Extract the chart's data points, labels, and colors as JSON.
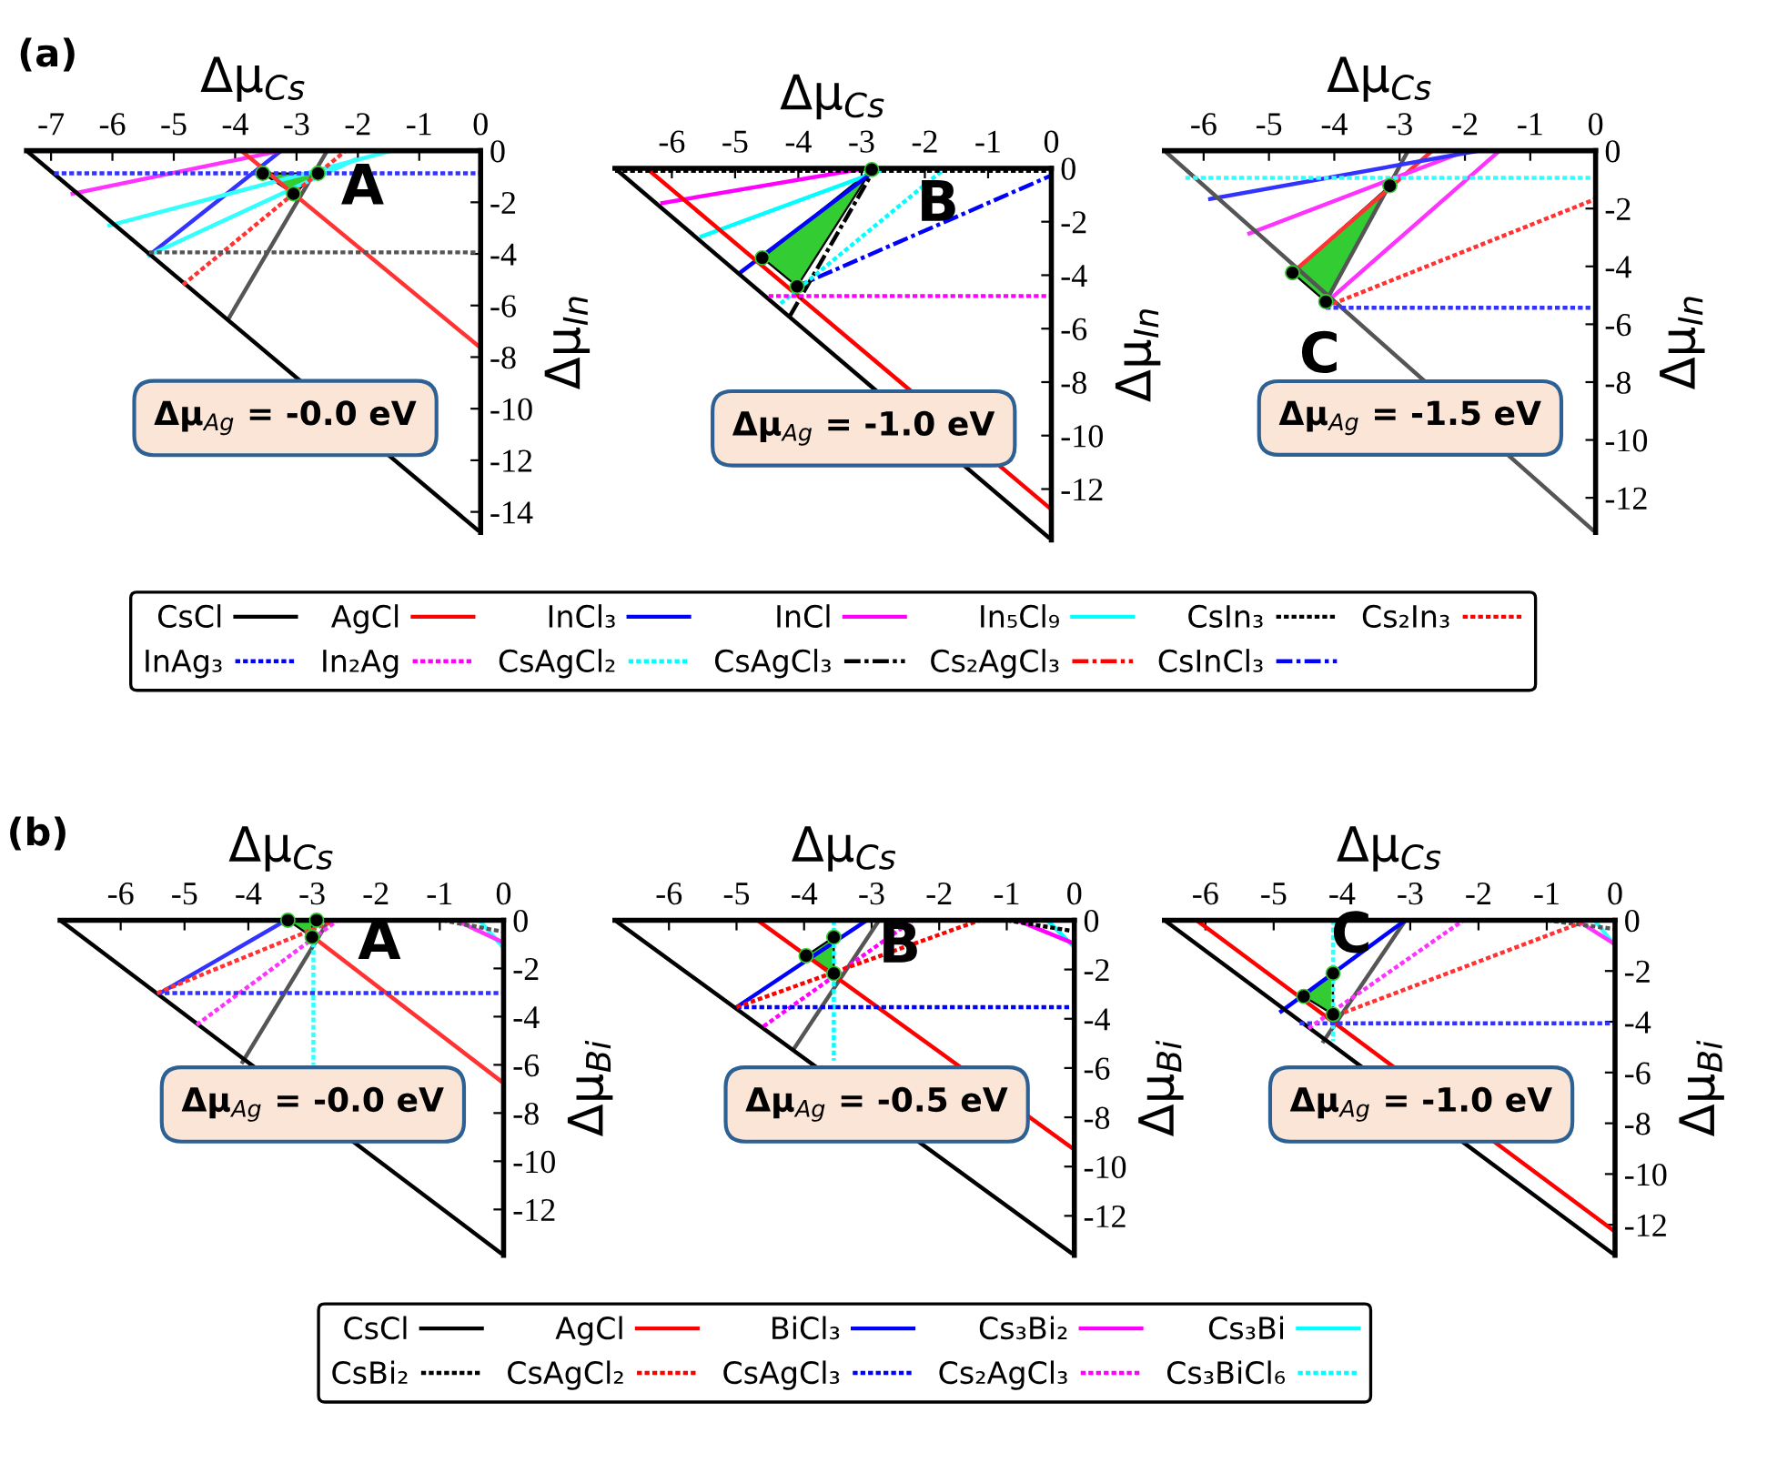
{
  "chart_data": [
    {
      "type": "line",
      "title": "(a)",
      "xlabel": "Δμ$_{Cs}$",
      "ylabel": "Δμ$_{In}$",
      "xlim": [
        -7.4,
        0
      ],
      "ylim": [
        -14.8,
        0
      ],
      "xticks": [
        -7,
        -6,
        -5,
        -4,
        -3,
        -2,
        -1,
        0
      ],
      "yticks": [
        0,
        -2,
        -4,
        -6,
        -8,
        -10,
        -12,
        -14
      ],
      "legend": false,
      "grid": false,
      "annotations": [
        "A",
        "Δμ$_{Ag}$ = -0.0 eV"
      ],
      "series": [
        {
          "color": "#000000",
          "line_style": "solid",
          "x": [
            -7.4,
            0
          ],
          "values": [
            0,
            -14.8
          ]
        },
        {
          "color": "#ff3333",
          "line_style": "solid",
          "x": [
            -3.9,
            0
          ],
          "values": [
            0,
            -7.64
          ]
        },
        {
          "color": "#3333ff",
          "line_style": "dotted",
          "x": [
            -6.95,
            0
          ],
          "values": [
            -0.88,
            -0.88
          ]
        },
        {
          "color": "#ff33ff",
          "line_style": "solid",
          "x": [
            -6.65,
            -3.25
          ],
          "values": [
            -1.67,
            0
          ]
        },
        {
          "color": "#33ffff",
          "line_style": "solid",
          "x": [
            -6.05,
            -1.45
          ],
          "values": [
            -2.9,
            0
          ]
        },
        {
          "color": "#33ffff",
          "line_style": "solid",
          "x": [
            -5.4,
            -2.05
          ],
          "values": [
            -4.05,
            -0.35
          ]
        },
        {
          "color": "#3333ff",
          "line_style": "solid",
          "x": [
            -5.4,
            -3.25
          ],
          "values": [
            -4.05,
            0
          ]
        },
        {
          "color": "#555555",
          "line_style": "dotted",
          "x": [
            -5.4,
            0
          ],
          "values": [
            -3.94,
            -3.94
          ]
        },
        {
          "color": "#ff3333",
          "line_style": "dotted",
          "x": [
            -4.85,
            -2.2
          ],
          "values": [
            -5.2,
            0
          ]
        },
        {
          "color": "#555555",
          "line_style": "solid",
          "x": [
            -4.1,
            -2.5
          ],
          "values": [
            -6.48,
            0
          ]
        },
        {
          "type": "area",
          "color": "#33cc33",
          "marker": "circle",
          "x": [
            -3.55,
            -3.05,
            -2.65
          ],
          "values": [
            -0.88,
            -1.67,
            -0.88
          ]
        }
      ]
    },
    {
      "type": "line",
      "xlabel": "Δμ$_{Cs}$",
      "ylabel": "Δμ$_{In}$",
      "xlim": [
        -6.9,
        0
      ],
      "ylim": [
        -13.9,
        0
      ],
      "xticks": [
        -6,
        -5,
        -4,
        -3,
        -2,
        -1,
        0
      ],
      "yticks": [
        0,
        -2,
        -4,
        -6,
        -8,
        -10,
        -12
      ],
      "legend": "bottom",
      "grid": false,
      "annotations": [
        "B",
        "Δμ$_{Ag}$ = -1.0 eV"
      ],
      "series": [
        {
          "name": "CsCl",
          "color": "#000000",
          "line_style": "solid",
          "x": [
            -6.9,
            0
          ],
          "values": [
            0,
            -13.9
          ]
        },
        {
          "name": "AgCl",
          "color": "#ff0000",
          "line_style": "solid",
          "x": [
            -6.4,
            0
          ],
          "values": [
            0,
            -12.76
          ]
        },
        {
          "name": "InCl₃",
          "color": "#0000ff",
          "line_style": "solid",
          "x": [
            -4.9,
            -2.74
          ],
          "values": [
            -3.87,
            0
          ]
        },
        {
          "name": "InCl",
          "color": "#ff00ff",
          "line_style": "solid",
          "x": [
            -6.15,
            -2.93
          ],
          "values": [
            -1.3,
            0
          ]
        },
        {
          "name": "In₅Cl₉",
          "color": "#00ffff",
          "line_style": "solid",
          "x": [
            -5.53,
            -2.6
          ],
          "values": [
            -2.55,
            0
          ]
        },
        {
          "name": "CsIn₃",
          "color": "#000000",
          "line_style": "dotted",
          "x": [
            -6.9,
            0
          ],
          "values": [
            -0.1,
            -0.1
          ]
        },
        {
          "name": "Cs₂In₃",
          "color": "#ff0000",
          "line_style": "dotted"
        },
        {
          "name": "InAg₃",
          "color": "#0000ff",
          "line_style": "dotted"
        },
        {
          "name": "In₂Ag",
          "color": "#ff00ff",
          "line_style": "dotted",
          "x": [
            -4.47,
            0
          ],
          "values": [
            -4.78,
            -4.78
          ]
        },
        {
          "name": "CsAgCl₂",
          "color": "#00ffff",
          "line_style": "dotted",
          "x": [
            -4.28,
            -1.68
          ],
          "values": [
            -5.06,
            0
          ]
        },
        {
          "name": "CsAgCl₃",
          "color": "#000000",
          "line_style": "dashdot",
          "x": [
            -4.13,
            -2.79
          ],
          "values": [
            -5.51,
            0
          ]
        },
        {
          "name": "Cs₂AgCl₃",
          "color": "#ff0000",
          "line_style": "dashdot"
        },
        {
          "name": "CsInCl₃",
          "color": "#0000ff",
          "line_style": "dashdot",
          "x": [
            -4.09,
            0
          ],
          "values": [
            -4.49,
            -0.27
          ]
        },
        {
          "type": "area",
          "color": "#33cc33",
          "marker": "circle",
          "x": [
            -4.57,
            -4.02,
            -2.84
          ],
          "values": [
            -3.35,
            -4.42,
            -0.05
          ]
        }
      ]
    },
    {
      "type": "line",
      "xlabel": "Δμ$_{Cs}$",
      "ylabel": "Δμ$_{In}$",
      "xlim": [
        -6.6,
        0
      ],
      "ylim": [
        -13.2,
        0
      ],
      "xticks": [
        -6,
        -5,
        -4,
        -3,
        -2,
        -1,
        0
      ],
      "yticks": [
        0,
        -2,
        -4,
        -6,
        -8,
        -10,
        -12
      ],
      "legend": false,
      "grid": false,
      "annotations": [
        "C",
        "Δμ$_{Ag}$ = -1.5 eV"
      ],
      "series": [
        {
          "color": "#555555",
          "line_style": "solid",
          "x": [
            -6.6,
            0
          ],
          "values": [
            0,
            -13.2
          ]
        },
        {
          "color": "#33ffff",
          "line_style": "dotted",
          "x": [
            -6.28,
            0
          ],
          "values": [
            -0.94,
            -0.94
          ]
        },
        {
          "color": "#3333ff",
          "line_style": "solid",
          "x": [
            -5.9,
            -1.79
          ],
          "values": [
            -1.67,
            0
          ]
        },
        {
          "color": "#ff33ff",
          "line_style": "solid",
          "x": [
            -5.3,
            -1.98
          ],
          "values": [
            -2.86,
            0
          ]
        },
        {
          "color": "#ff3333",
          "line_style": "solid",
          "x": [
            -4.64,
            -2.5
          ],
          "values": [
            -4.22,
            0
          ]
        },
        {
          "color": "#555555",
          "line_style": "solid",
          "x": [
            -4.13,
            -2.87
          ],
          "values": [
            -5.22,
            0
          ]
        },
        {
          "color": "#ff33ff",
          "line_style": "solid",
          "x": [
            -4.13,
            -1.47
          ],
          "values": [
            -5.26,
            0
          ]
        },
        {
          "color": "#ff3333",
          "line_style": "dotted",
          "x": [
            -4.13,
            0
          ],
          "values": [
            -5.39,
            -1.67
          ]
        },
        {
          "color": "#3333ff",
          "line_style": "dotted",
          "x": [
            -4.13,
            0
          ],
          "values": [
            -5.43,
            -5.43
          ]
        },
        {
          "type": "area",
          "color": "#33cc33",
          "marker": "circle",
          "x": [
            -4.64,
            -4.13,
            -3.15
          ],
          "values": [
            -4.22,
            -5.22,
            -1.21
          ]
        }
      ]
    },
    {
      "type": "line",
      "title": "(b)",
      "xlabel": "Δμ$_{Cs}$",
      "ylabel": "Δμ$_{Bi}$",
      "xlim": [
        -6.95,
        0
      ],
      "ylim": [
        -13.9,
        0
      ],
      "xticks": [
        -6,
        -5,
        -4,
        -3,
        -2,
        -1,
        0
      ],
      "yticks": [
        0,
        -2,
        -4,
        -6,
        -8,
        -10,
        -12
      ],
      "legend": false,
      "grid": false,
      "annotations": [
        "A",
        "Δμ$_{Ag}$ = -0.0 eV"
      ],
      "series": [
        {
          "color": "#000000",
          "line_style": "solid",
          "x": [
            -6.95,
            0
          ],
          "values": [
            0,
            -13.9
          ]
        },
        {
          "color": "#3333ff",
          "line_style": "solid",
          "x": [
            -5.38,
            -3.41
          ],
          "values": [
            -3.02,
            0
          ]
        },
        {
          "color": "#ff3333",
          "line_style": "dotted",
          "x": [
            -5.43,
            -2.64
          ],
          "values": [
            -3.02,
            0
          ]
        },
        {
          "color": "#3333ff",
          "line_style": "dotted",
          "x": [
            -5.43,
            0
          ],
          "values": [
            -3.02,
            -3.02
          ]
        },
        {
          "color": "#ff33ff",
          "line_style": "dotted",
          "x": [
            -4.81,
            -2.6
          ],
          "values": [
            -4.34,
            0
          ]
        },
        {
          "color": "#555555",
          "line_style": "solid",
          "x": [
            -4.09,
            -2.74
          ],
          "values": [
            -5.88,
            0
          ]
        },
        {
          "color": "#33ffff",
          "line_style": "dotted",
          "x": [
            -2.98,
            -2.98
          ],
          "values": [
            0,
            -6.0
          ]
        },
        {
          "color": "#ff3333",
          "line_style": "solid",
          "x": [
            -2.98,
            0
          ],
          "values": [
            -0.7,
            -6.76
          ]
        },
        {
          "color": "#555555",
          "line_style": "dotted",
          "x": [
            -0.96,
            0
          ],
          "values": [
            0,
            -0.48
          ]
        },
        {
          "color": "#ff33ff",
          "line_style": "solid",
          "x": [
            -0.67,
            0
          ],
          "values": [
            -0.1,
            -0.93
          ]
        },
        {
          "color": "#33ffff",
          "line_style": "solid",
          "x": [
            -0.38,
            0
          ],
          "values": [
            0,
            -1.15
          ]
        },
        {
          "type": "area",
          "color": "#33cc33",
          "marker": "circle",
          "x": [
            -3.38,
            -3.0,
            -2.93
          ],
          "values": [
            0,
            -0.7,
            0
          ]
        }
      ]
    },
    {
      "type": "line",
      "xlabel": "Δμ$_{Cs}$",
      "ylabel": "Δμ$_{Bi}$",
      "xlim": [
        -6.8,
        0
      ],
      "ylim": [
        -13.6,
        0
      ],
      "xticks": [
        -6,
        -5,
        -4,
        -3,
        -2,
        -1,
        0
      ],
      "yticks": [
        0,
        -2,
        -4,
        -6,
        -8,
        -10,
        -12
      ],
      "legend": "bottom",
      "grid": false,
      "annotations": [
        "B",
        "Δμ$_{Ag}$ = -0.5 eV"
      ],
      "series": [
        {
          "name": "CsCl",
          "color": "#000000",
          "line_style": "solid",
          "x": [
            -6.8,
            0
          ],
          "values": [
            0,
            -13.6
          ]
        },
        {
          "name": "AgCl",
          "color": "#ff0000",
          "line_style": "solid",
          "x": [
            -4.69,
            0
          ],
          "values": [
            0,
            -9.31
          ]
        },
        {
          "name": "BiCl₃",
          "color": "#0000ff",
          "line_style": "solid",
          "x": [
            -5.0,
            -3.07
          ],
          "values": [
            -3.53,
            0
          ]
        },
        {
          "name": "Cs₃Bi₂",
          "color": "#ff00ff",
          "line_style": "solid",
          "x": [
            -0.85,
            0
          ],
          "values": [
            0,
            -0.95
          ]
        },
        {
          "name": "Cs₃Bi",
          "color": "#00ffff",
          "line_style": "solid",
          "x": [
            -0.4,
            0
          ],
          "values": [
            0,
            -1.1
          ]
        },
        {
          "name": "CsBi₂",
          "color": "#000000",
          "line_style": "dotted",
          "x": [
            -1.0,
            0
          ],
          "values": [
            0,
            -0.45
          ]
        },
        {
          "name": "CsAgCl₂",
          "color": "#ff0000",
          "line_style": "dotted",
          "x": [
            -5.0,
            -1.4
          ],
          "values": [
            -3.53,
            0
          ]
        },
        {
          "name": "CsAgCl₃",
          "color": "#0000ff",
          "line_style": "dotted",
          "x": [
            -5.0,
            0
          ],
          "values": [
            -3.53,
            -3.53
          ]
        },
        {
          "name": "Cs₂AgCl₃",
          "color": "#ff00ff",
          "line_style": "dotted",
          "x": [
            -4.6,
            -2.39
          ],
          "values": [
            -4.31,
            0
          ]
        },
        {
          "name": "Cs₃BiCl₆",
          "color": "#00ffff",
          "line_style": "dotted",
          "x": [
            -3.56,
            -3.56
          ],
          "values": [
            0,
            -5.7
          ]
        },
        {
          "color": "#555555",
          "line_style": "solid",
          "x": [
            -4.15,
            -2.89
          ],
          "values": [
            -5.22,
            0
          ]
        },
        {
          "type": "area",
          "color": "#33cc33",
          "marker": "circle",
          "x": [
            -3.97,
            -3.56,
            -3.56
          ],
          "values": [
            -1.44,
            -0.69,
            -2.16
          ]
        }
      ]
    },
    {
      "type": "line",
      "xlabel": "Δμ$_{Cs}$",
      "ylabel": "Δμ$_{Bi}$",
      "xlim": [
        -6.6,
        0
      ],
      "ylim": [
        -13.2,
        0
      ],
      "xticks": [
        -6,
        -5,
        -4,
        -3,
        -2,
        -1,
        0
      ],
      "yticks": [
        0,
        -2,
        -4,
        -6,
        -8,
        -10,
        -12
      ],
      "legend": false,
      "grid": false,
      "annotations": [
        "C",
        "Δμ$_{Ag}$ = -1.0 eV"
      ],
      "series": [
        {
          "color": "#000000",
          "line_style": "solid",
          "x": [
            -6.6,
            0
          ],
          "values": [
            0,
            -13.2
          ]
        },
        {
          "color": "#ff0000",
          "line_style": "solid",
          "x": [
            -6.13,
            0
          ],
          "values": [
            0,
            -12.27
          ]
        },
        {
          "color": "#0000ff",
          "line_style": "solid",
          "x": [
            -4.89,
            -3.07
          ],
          "values": [
            -3.59,
            0
          ]
        },
        {
          "color": "#555555",
          "line_style": "solid",
          "x": [
            -4.27,
            -3.07
          ],
          "values": [
            -4.77,
            0
          ]
        },
        {
          "color": "#ff33ff",
          "line_style": "dotted",
          "x": [
            -4.49,
            -2.22
          ],
          "values": [
            -4.26,
            0
          ]
        },
        {
          "color": "#ff3333",
          "line_style": "dotted",
          "x": [
            -4.18,
            -0.4
          ],
          "values": [
            -3.85,
            0
          ]
        },
        {
          "color": "#3333ff",
          "line_style": "dotted",
          "x": [
            -4.62,
            0
          ],
          "values": [
            -4.06,
            -4.06
          ]
        },
        {
          "color": "#33ffff",
          "line_style": "dotted",
          "x": [
            -4.13,
            -4.13
          ],
          "values": [
            0,
            -4.77
          ]
        },
        {
          "color": "#555555",
          "line_style": "dotted",
          "x": [
            -1.0,
            0
          ],
          "values": [
            0,
            -0.35
          ]
        },
        {
          "color": "#ff33ff",
          "line_style": "solid",
          "x": [
            -0.5,
            0
          ],
          "values": [
            -0.1,
            -0.95
          ]
        },
        {
          "color": "#33ffff",
          "line_style": "solid",
          "x": [
            -0.3,
            0
          ],
          "values": [
            0,
            -1.0
          ]
        },
        {
          "type": "area",
          "color": "#33cc33",
          "marker": "circle",
          "x": [
            -4.56,
            -4.13,
            -4.13
          ],
          "values": [
            -3.0,
            -2.09,
            -3.71
          ]
        }
      ]
    }
  ]
}
